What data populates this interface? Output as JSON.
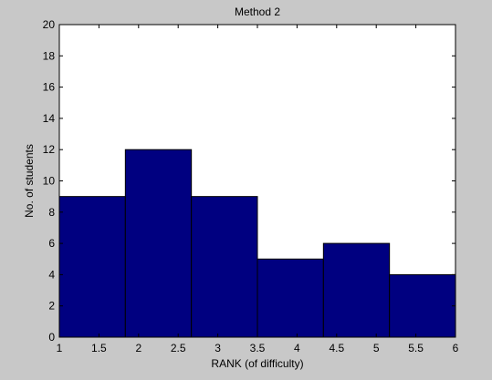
{
  "chart_data": {
    "type": "bar",
    "title": "Method 2",
    "xlabel": "RANK (of difficulty)",
    "ylabel": "No. of students",
    "xlim": [
      1,
      6
    ],
    "ylim": [
      0,
      20
    ],
    "x_ticks": [
      "1",
      "1.5",
      "2",
      "2.5",
      "3",
      "3.5",
      "4",
      "4.5",
      "5",
      "5.5",
      "6"
    ],
    "y_ticks": [
      "0",
      "2",
      "4",
      "6",
      "8",
      "10",
      "12",
      "14",
      "16",
      "18",
      "20"
    ],
    "bins": [
      {
        "x0": 1.0,
        "x1": 1.8333,
        "value": 9
      },
      {
        "x0": 1.8333,
        "x1": 2.6667,
        "value": 12
      },
      {
        "x0": 2.6667,
        "x1": 3.5,
        "value": 9
      },
      {
        "x0": 3.5,
        "x1": 4.3333,
        "value": 5
      },
      {
        "x0": 4.3333,
        "x1": 5.1667,
        "value": 6
      },
      {
        "x0": 5.1667,
        "x1": 6.0,
        "value": 4
      }
    ],
    "bar_color": "#000080",
    "background_color": "#c8c8c8",
    "grid": false
  }
}
